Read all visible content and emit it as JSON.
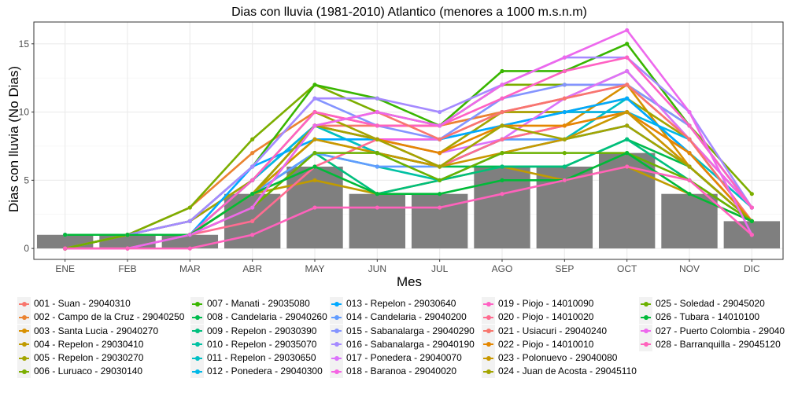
{
  "chart_data": {
    "type": "bar+line",
    "title": "Dias con lluvia (1981-2010) Atlantico (menores a 1000 m.s.n.m)",
    "xlabel": "Mes",
    "ylabel": "Dias con lluvia (No Dias)",
    "categories": [
      "ENE",
      "FEB",
      "MAR",
      "ABR",
      "MAY",
      "JUN",
      "JUL",
      "AGO",
      "SEP",
      "OCT",
      "NOV",
      "DIC"
    ],
    "ylim": [
      -0.8,
      16.6
    ],
    "yticks": [
      0,
      5,
      10,
      15
    ],
    "grid": true,
    "legend_position": "bottom",
    "bars": {
      "color": "#7f7f7f",
      "values": [
        1,
        1,
        1,
        4,
        6,
        4,
        4,
        6,
        6,
        7,
        4,
        2
      ]
    },
    "series": [
      {
        "name": "001 - Suan - 29040310",
        "color": "#F8766D",
        "values": [
          0,
          1,
          2,
          5,
          9,
          9,
          9,
          10,
          10,
          10,
          6,
          2
        ]
      },
      {
        "name": "002 - Campo de la Cruz - 29040250",
        "color": "#EA8331",
        "values": [
          1,
          1,
          3,
          7,
          10,
          9,
          9,
          10,
          11,
          13,
          8,
          2
        ]
      },
      {
        "name": "003 - Santa Lucia - 29040270",
        "color": "#D89000",
        "values": [
          0,
          1,
          1,
          4,
          8,
          7,
          6,
          8,
          9,
          12,
          6,
          2
        ]
      },
      {
        "name": "004 - Repelon - 29030410",
        "color": "#C09B00",
        "values": [
          0,
          0,
          1,
          4,
          5,
          4,
          5,
          6,
          5,
          6,
          4,
          2
        ]
      },
      {
        "name": "005 - Repelon - 29030270",
        "color": "#A3A500",
        "values": [
          1,
          1,
          2,
          5,
          10,
          8,
          7,
          10,
          10,
          11,
          8,
          3
        ]
      },
      {
        "name": "006 - Luruaco - 29030140",
        "color": "#7CAE00",
        "values": [
          1,
          1,
          3,
          8,
          12,
          10,
          9,
          12,
          12,
          12,
          9,
          4
        ]
      },
      {
        "name": "007 - Manati - 29035080",
        "color": "#39B600",
        "values": [
          0,
          1,
          2,
          6,
          12,
          11,
          9,
          13,
          13,
          15,
          9,
          3
        ]
      },
      {
        "name": "008 - Candelaria - 29040260",
        "color": "#00BB4E",
        "values": [
          0,
          1,
          1,
          5,
          9,
          7,
          6,
          6,
          6,
          8,
          6,
          2
        ]
      },
      {
        "name": "009 - Repelon - 29030390",
        "color": "#00BF7D",
        "values": [
          0,
          1,
          1,
          4,
          7,
          4,
          5,
          6,
          6,
          8,
          5,
          2
        ]
      },
      {
        "name": "010 - Repelon - 29035070",
        "color": "#00C1A3",
        "values": [
          0,
          1,
          1,
          4,
          7,
          6,
          5,
          7,
          8,
          9,
          6,
          2
        ]
      },
      {
        "name": "011 - Repelon - 29030650",
        "color": "#00BFC4",
        "values": [
          1,
          1,
          1,
          4,
          9,
          7,
          6,
          8,
          8,
          11,
          7,
          3
        ]
      },
      {
        "name": "012 - Ponedera - 29040300",
        "color": "#00B8E7",
        "values": [
          0,
          1,
          1,
          5,
          9,
          8,
          8,
          9,
          10,
          10,
          8,
          3
        ]
      },
      {
        "name": "013 - Repelon - 29030640",
        "color": "#00A9FF",
        "values": [
          0,
          1,
          1,
          6,
          8,
          8,
          8,
          9,
          10,
          11,
          7,
          2
        ]
      },
      {
        "name": "014 - Candelaria - 29040200",
        "color": "#619CFF",
        "values": [
          0,
          1,
          1,
          4,
          7,
          6,
          6,
          8,
          8,
          9,
          6,
          2
        ]
      },
      {
        "name": "015 - Sabanalarga - 29040290",
        "color": "#8494FF",
        "values": [
          1,
          1,
          2,
          6,
          11,
          9,
          8,
          11,
          12,
          12,
          9,
          3
        ]
      },
      {
        "name": "016 - Sabanalarga - 29040190",
        "color": "#A58AFF",
        "values": [
          1,
          1,
          2,
          6,
          11,
          11,
          10,
          12,
          14,
          14,
          10,
          3
        ]
      },
      {
        "name": "017 - Ponedera - 29040070",
        "color": "#DB72FB",
        "values": [
          0,
          1,
          1,
          3,
          9,
          8,
          7,
          8,
          11,
          13,
          8,
          2
        ]
      },
      {
        "name": "018 - Baranoa - 29040020",
        "color": "#F564E3",
        "values": [
          0,
          0,
          1,
          4,
          9,
          8,
          8,
          10,
          11,
          12,
          8,
          3
        ]
      },
      {
        "name": "019 - Piojo - 14010090",
        "color": "#FF61C3",
        "values": [
          0,
          1,
          1,
          5,
          10,
          9,
          9,
          11,
          13,
          14,
          9,
          3
        ]
      },
      {
        "name": "020 - Piojo - 14010020",
        "color": "#FF6C91",
        "values": [
          0,
          1,
          1,
          2,
          6,
          8,
          6,
          8,
          9,
          10,
          7,
          2
        ]
      },
      {
        "name": "021 - Usiacuri - 29040240",
        "color": "#F8766D",
        "values": [
          0,
          1,
          1,
          3,
          9,
          10,
          8,
          10,
          11,
          12,
          8,
          2
        ]
      },
      {
        "name": "022 - Piojo - 14010010",
        "color": "#E58700",
        "values": [
          0,
          1,
          1,
          4,
          9,
          8,
          7,
          9,
          9,
          10,
          7,
          2
        ]
      },
      {
        "name": "023 - Polonuevo - 29040080",
        "color": "#C99800",
        "values": [
          0,
          1,
          1,
          4,
          8,
          7,
          6,
          7,
          8,
          10,
          6,
          2
        ]
      },
      {
        "name": "024 - Juan de Acosta - 29045110",
        "color": "#A3A500",
        "values": [
          0,
          1,
          1,
          4,
          9,
          8,
          6,
          9,
          8,
          9,
          6,
          2
        ]
      },
      {
        "name": "025 - Soledad - 29045020",
        "color": "#6BB100",
        "values": [
          0,
          1,
          1,
          3,
          7,
          7,
          5,
          7,
          7,
          7,
          5,
          2
        ]
      },
      {
        "name": "026 - Tubara - 14010100",
        "color": "#00BA38",
        "values": [
          1,
          1,
          1,
          4,
          6,
          4,
          4,
          5,
          5,
          7,
          4,
          2
        ]
      },
      {
        "name": "027 - Puerto Colombia - 29040",
        "color": "#ED68ED",
        "values": [
          0,
          0,
          1,
          3,
          9,
          10,
          9,
          12,
          14,
          16,
          10,
          1
        ]
      },
      {
        "name": "028 - Barranquilla - 29045120",
        "color": "#FF62BC",
        "values": [
          0,
          0,
          0,
          1,
          3,
          3,
          3,
          4,
          5,
          6,
          5,
          1
        ]
      }
    ]
  }
}
